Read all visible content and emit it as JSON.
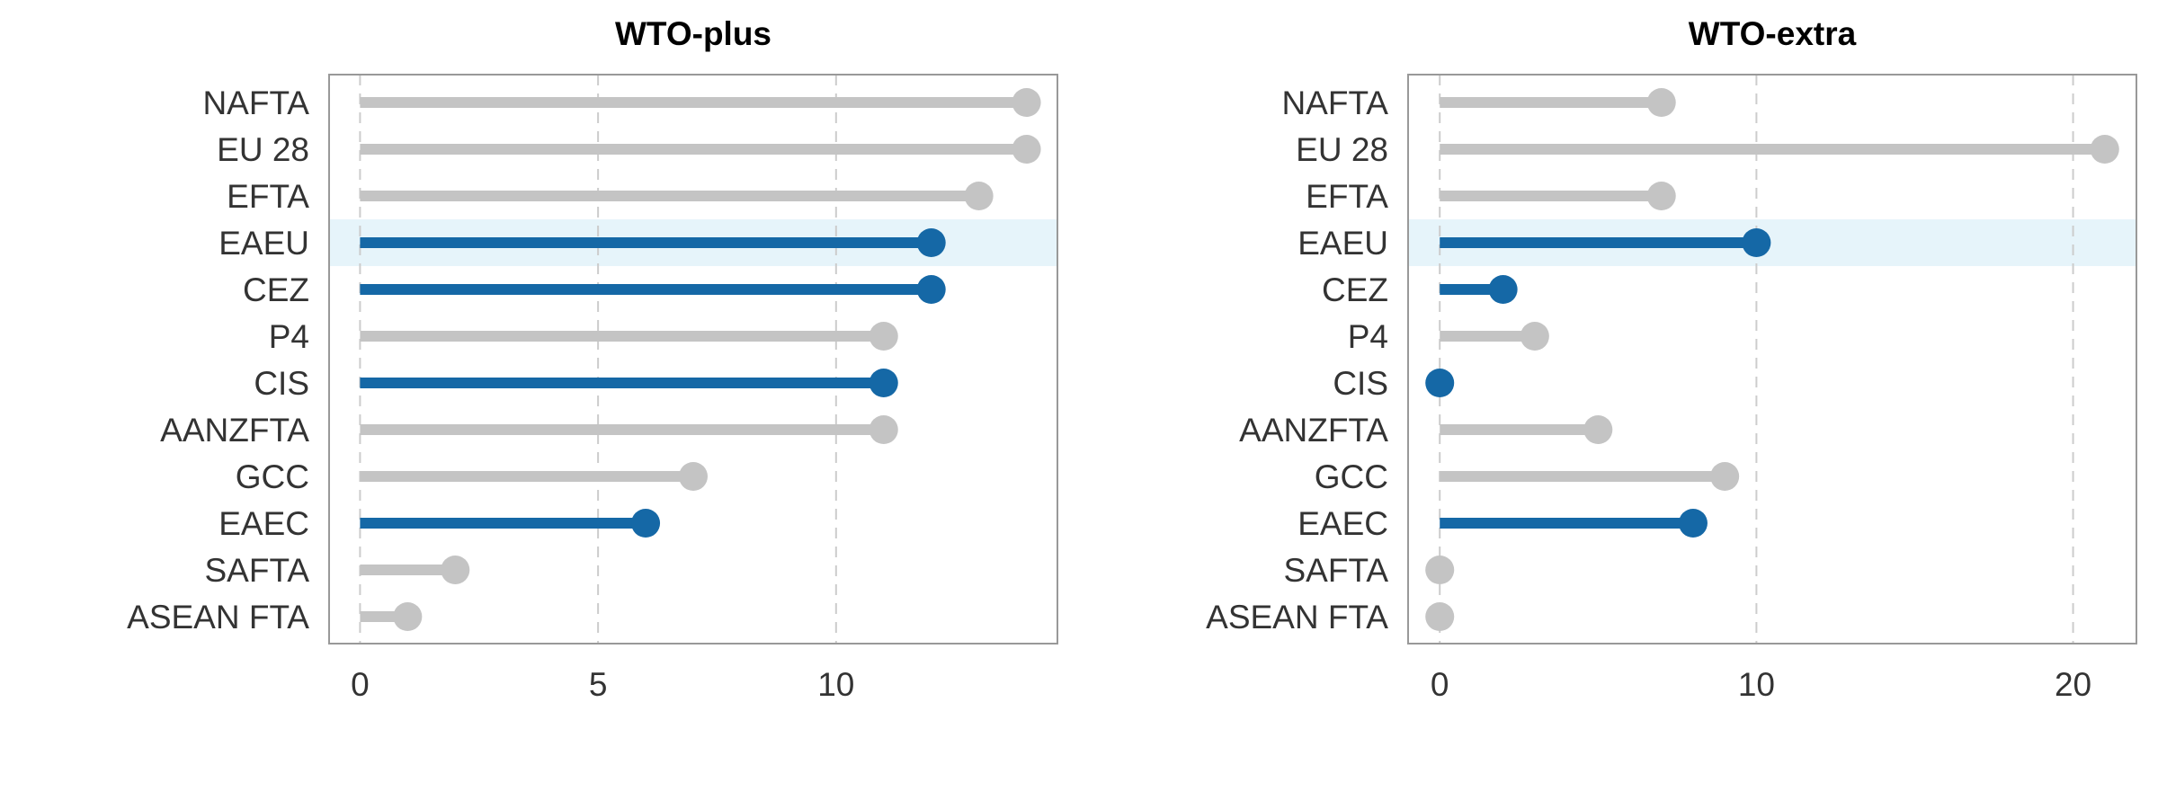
{
  "colors": {
    "highlight": "#1568a6",
    "muted": "#c4c4c4",
    "highlight_band": "#e6f4fa",
    "frame": "#999999",
    "grid": "#cccccc"
  },
  "chart_data": [
    {
      "type": "lollipop",
      "title": "WTO-plus",
      "categories": [
        "NAFTA",
        "EU 28",
        "EFTA",
        "EAEU",
        "CEZ",
        "P4",
        "CIS",
        "AANZFTA",
        "GCC",
        "EAEC",
        "SAFTA",
        "ASEAN FTA"
      ],
      "values": [
        14,
        14,
        13,
        12,
        12,
        11,
        11,
        11,
        7,
        6,
        2,
        1
      ],
      "highlighted": [
        false,
        false,
        false,
        true,
        true,
        false,
        true,
        false,
        false,
        true,
        false,
        false
      ],
      "band_category": "EAEU",
      "xlim": [
        -0.65,
        14.65
      ],
      "xticks": [
        0,
        5,
        10
      ],
      "grid": "vertical dashed",
      "xlabel": "",
      "ylabel": ""
    },
    {
      "type": "lollipop",
      "title": "WTO-extra",
      "categories": [
        "NAFTA",
        "EU 28",
        "EFTA",
        "EAEU",
        "CEZ",
        "P4",
        "CIS",
        "AANZFTA",
        "GCC",
        "EAEC",
        "SAFTA",
        "ASEAN FTA"
      ],
      "values": [
        7,
        21,
        7,
        10,
        2,
        3,
        0,
        5,
        9,
        8,
        0,
        0
      ],
      "highlighted": [
        false,
        false,
        false,
        true,
        true,
        false,
        true,
        false,
        false,
        true,
        false,
        false
      ],
      "band_category": "EAEU",
      "xlim": [
        -1.0,
        22.0
      ],
      "xticks": [
        0,
        10,
        20
      ],
      "grid": "vertical dashed",
      "xlabel": "",
      "ylabel": ""
    }
  ]
}
